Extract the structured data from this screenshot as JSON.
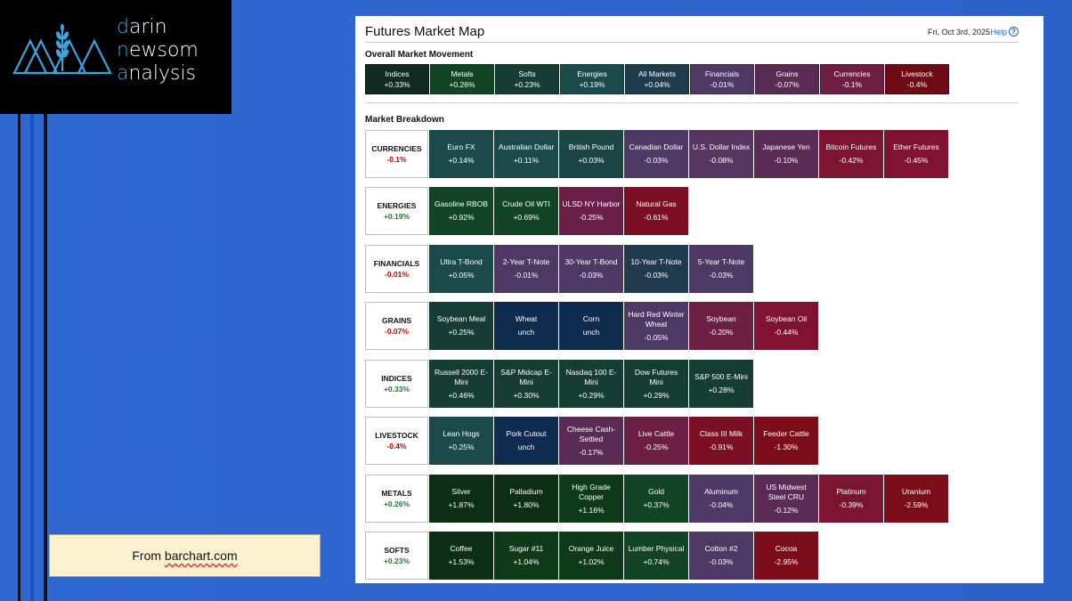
{
  "logo": {
    "brand_lines": [
      {
        "first": "d",
        "rest": "arin"
      },
      {
        "first": "n",
        "rest": "ewsom"
      },
      {
        "first": "a",
        "rest": "nalysis"
      }
    ],
    "icon": "wheat-mountains-logo"
  },
  "source_note": {
    "prefix": "From ",
    "link": "barchart.com"
  },
  "panel": {
    "title": "Futures Market Map",
    "date": "Fri, Oct 3rd, 2025",
    "help_label": "Help",
    "help_icon": "question-circle-icon"
  },
  "overall": {
    "title": "Overall Market Movement",
    "items": [
      {
        "name": "Indices",
        "change": "+0.33%",
        "color": "#0f2b22"
      },
      {
        "name": "Metals",
        "change": "+0.26%",
        "color": "#124525"
      },
      {
        "name": "Softs",
        "change": "+0.23%",
        "color": "#163d33"
      },
      {
        "name": "Energies",
        "change": "+0.19%",
        "color": "#1b4a4a"
      },
      {
        "name": "All Markets",
        "change": "+0.04%",
        "color": "#1f3b4d"
      },
      {
        "name": "Financials",
        "change": "-0.01%",
        "color": "#4e3866"
      },
      {
        "name": "Grains",
        "change": "-0.07%",
        "color": "#5a2b55"
      },
      {
        "name": "Currencies",
        "change": "-0.1%",
        "color": "#6c1f42"
      },
      {
        "name": "Livestock",
        "change": "-0.4%",
        "color": "#6e0b14"
      }
    ]
  },
  "breakdown": {
    "title": "Market Breakdown",
    "groups": [
      {
        "name": "CURRENCIES",
        "change": "-0.1%",
        "dir": "neg",
        "items": [
          {
            "name": "Euro FX",
            "change": "+0.14%",
            "color": "#1b4a4a"
          },
          {
            "name": "Australian Dollar",
            "change": "+0.11%",
            "color": "#1b4a4a"
          },
          {
            "name": "British Pound",
            "change": "+0.03%",
            "color": "#1c4646"
          },
          {
            "name": "Canadian Dollar",
            "change": "-0.03%",
            "color": "#4e3866"
          },
          {
            "name": "U.S. Dollar Index",
            "change": "-0.08%",
            "color": "#563561"
          },
          {
            "name": "Japanese Yen",
            "change": "-0.10%",
            "color": "#5a2b55"
          },
          {
            "name": "Bitcoin Futures",
            "change": "-0.42%",
            "color": "#7a1430"
          },
          {
            "name": "Ether Futures",
            "change": "-0.45%",
            "color": "#7e1230"
          }
        ]
      },
      {
        "name": "ENERGIES",
        "change": "+0.19%",
        "dir": "pos",
        "items": [
          {
            "name": "Gasoline RBOB",
            "change": "+0.92%",
            "color": "#124525"
          },
          {
            "name": "Crude Oil WTI",
            "change": "+0.69%",
            "color": "#124525"
          },
          {
            "name": "ULSD NY Harbor",
            "change": "-0.25%",
            "color": "#6a1e48"
          },
          {
            "name": "Natural Gas",
            "change": "-0.61%",
            "color": "#7b1025"
          }
        ]
      },
      {
        "name": "FINANCIALS",
        "change": "-0.01%",
        "dir": "neg",
        "items": [
          {
            "name": "Ultra T-Bond",
            "change": "+0.05%",
            "color": "#1b4a4a"
          },
          {
            "name": "2-Year T-Note",
            "change": "-0.01%",
            "color": "#4e3866"
          },
          {
            "name": "30-Year T-Bond",
            "change": "-0.03%",
            "color": "#4e3866"
          },
          {
            "name": "10-Year T-Note",
            "change": "-0.03%",
            "color": "#1f3b4d"
          },
          {
            "name": "5-Year T-Note",
            "change": "-0.03%",
            "color": "#4e3866"
          }
        ]
      },
      {
        "name": "GRAINS",
        "change": "-0.07%",
        "dir": "neg",
        "items": [
          {
            "name": "Soybean Meal",
            "change": "+0.25%",
            "color": "#163d33"
          },
          {
            "name": "Wheat",
            "change": "unch",
            "color": "#0f2b4d"
          },
          {
            "name": "Corn",
            "change": "unch",
            "color": "#0f2b4d"
          },
          {
            "name": "Hard Red Winter Wheat",
            "change": "-0.05%",
            "color": "#4e3866"
          },
          {
            "name": "Soybean",
            "change": "-0.20%",
            "color": "#6c1f42"
          },
          {
            "name": "Soybean Oil",
            "change": "-0.44%",
            "color": "#7e1230"
          }
        ]
      },
      {
        "name": "INDICES",
        "change": "+0.33%",
        "dir": "pos",
        "items": [
          {
            "name": "Russell 2000 E-Mini",
            "change": "+0.46%",
            "color": "#163d33"
          },
          {
            "name": "S&P Midcap E-Mini",
            "change": "+0.30%",
            "color": "#163d33"
          },
          {
            "name": "Nasdaq 100 E-Mini",
            "change": "+0.29%",
            "color": "#163d33"
          },
          {
            "name": "Dow Futures Mini",
            "change": "+0.29%",
            "color": "#163d33"
          },
          {
            "name": "S&P 500 E-Mini",
            "change": "+0.28%",
            "color": "#163d33"
          }
        ]
      },
      {
        "name": "LIVESTOCK",
        "change": "-0.4%",
        "dir": "neg",
        "items": [
          {
            "name": "Lean Hogs",
            "change": "+0.25%",
            "color": "#1b4a4a"
          },
          {
            "name": "Pork Cutout",
            "change": "unch",
            "color": "#0f2b4d"
          },
          {
            "name": "Cheese Cash-Settled",
            "change": "-0.17%",
            "color": "#5a2b55"
          },
          {
            "name": "Live Cattle",
            "change": "-0.25%",
            "color": "#6c1f42"
          },
          {
            "name": "Class III Milk",
            "change": "-0.91%",
            "color": "#7b1025"
          },
          {
            "name": "Feeder Cattle",
            "change": "-1.30%",
            "color": "#7b0d1a"
          }
        ]
      },
      {
        "name": "METALS",
        "change": "+0.26%",
        "dir": "pos",
        "items": [
          {
            "name": "Silver",
            "change": "+1.87%",
            "color": "#0b2e14"
          },
          {
            "name": "Palladium",
            "change": "+1.80%",
            "color": "#0b2e14"
          },
          {
            "name": "High Grade Copper",
            "change": "+1.16%",
            "color": "#0f3a1a"
          },
          {
            "name": "Gold",
            "change": "+0.37%",
            "color": "#124525"
          },
          {
            "name": "Aluminum",
            "change": "-0.04%",
            "color": "#4e3866"
          },
          {
            "name": "US Midwest Steel CRU",
            "change": "-0.12%",
            "color": "#5a2b55"
          },
          {
            "name": "Platinum",
            "change": "-0.39%",
            "color": "#7a1430"
          },
          {
            "name": "Uranium",
            "change": "-2.59%",
            "color": "#7b0d1a"
          }
        ]
      },
      {
        "name": "SOFTS",
        "change": "+0.23%",
        "dir": "pos",
        "items": [
          {
            "name": "Coffee",
            "change": "+1.53%",
            "color": "#0b2e14"
          },
          {
            "name": "Sugar #11",
            "change": "+1.04%",
            "color": "#0f3a1a"
          },
          {
            "name": "Orange Juice",
            "change": "+1.02%",
            "color": "#0f3a1a"
          },
          {
            "name": "Lumber Physical",
            "change": "+0.74%",
            "color": "#124525"
          },
          {
            "name": "Cotton #2",
            "change": "-0.03%",
            "color": "#4e3866"
          },
          {
            "name": "Cocoa",
            "change": "-2.95%",
            "color": "#7b0d1a"
          }
        ]
      }
    ]
  }
}
